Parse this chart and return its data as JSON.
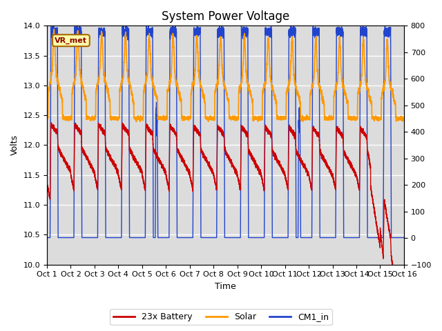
{
  "title": "System Power Voltage",
  "xlabel": "Time",
  "ylabel_left": "Volts",
  "xlim": [
    0,
    15
  ],
  "ylim_left": [
    10.0,
    14.0
  ],
  "ylim_right": [
    -100,
    800
  ],
  "yticks_left": [
    10.0,
    10.5,
    11.0,
    11.5,
    12.0,
    12.5,
    13.0,
    13.5,
    14.0
  ],
  "yticks_right": [
    -100,
    0,
    100,
    200,
    300,
    400,
    500,
    600,
    700,
    800
  ],
  "xtick_labels": [
    "Oct 1",
    "Oct 2",
    "Oct 3",
    "Oct 4",
    "Oct 5",
    "Oct 6",
    "Oct 7",
    "Oct 8",
    "Oct 9",
    "Oct 10",
    "Oct 11",
    "Oct 12",
    "Oct 13",
    "Oct 14",
    "Oct 15",
    "Oct 16"
  ],
  "xtick_positions": [
    0,
    1,
    2,
    3,
    4,
    5,
    6,
    7,
    8,
    9,
    10,
    11,
    12,
    13,
    14,
    15
  ],
  "annotation_text": "VR_met",
  "bg_color": "#dcdcdc",
  "colors": {
    "battery": "#cc0000",
    "solar": "#ff9900",
    "cm1": "#2244cc"
  },
  "legend_labels": [
    "23x Battery",
    "Solar",
    "CM1_in"
  ],
  "title_fontsize": 12,
  "axis_label_fontsize": 9,
  "tick_fontsize": 8
}
